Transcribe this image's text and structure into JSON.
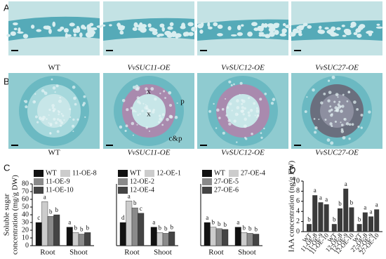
{
  "panel_labels": [
    "A",
    "B",
    "C",
    "D"
  ],
  "micrographs_a": {
    "captions": [
      "WT",
      "VvSUC11-OE",
      "VvSUC12-OE",
      "VvSUC27-OE"
    ]
  },
  "micrographs_b": {
    "captions": [
      "WT",
      "VvSUC11-OE",
      "VvSUC12-OE",
      "VvSUC27-OE"
    ],
    "annotations": [
      "x",
      "x",
      "p",
      "c&p"
    ]
  },
  "chart_data": [
    {
      "type": "bar",
      "y_label": [
        "Soluble sugar",
        "concentration (mg/g DW)"
      ],
      "categories": [
        "Root",
        "Shoot"
      ],
      "series": [
        {
          "name": "WT",
          "color": "#111111",
          "values": [
            30,
            24
          ],
          "letters": [
            "c",
            "a"
          ]
        },
        {
          "name": "11-OE-8",
          "color": "#cccccc",
          "values": [
            57,
            17
          ],
          "letters": [
            "a",
            "b"
          ]
        },
        {
          "name": "11-OE-9",
          "color": "#8a8a8a",
          "values": [
            38,
            15
          ],
          "letters": [
            "b",
            "b"
          ]
        },
        {
          "name": "11-OE-10",
          "color": "#444444",
          "values": [
            40,
            17
          ],
          "letters": [
            "b",
            "b"
          ]
        }
      ],
      "ylim": [
        0,
        80
      ],
      "yticks": [
        0,
        10,
        20,
        30,
        40,
        50,
        60,
        70,
        80
      ]
    },
    {
      "type": "bar",
      "categories": [
        "Root",
        "Shoot"
      ],
      "series": [
        {
          "name": "WT",
          "color": "#111111",
          "values": [
            30,
            24
          ],
          "letters": [
            "d",
            "a"
          ]
        },
        {
          "name": "12-OE-1",
          "color": "#cccccc",
          "values": [
            58,
            17
          ],
          "letters": [
            "a",
            "b"
          ]
        },
        {
          "name": "12-OE-2",
          "color": "#8a8a8a",
          "values": [
            49,
            16
          ],
          "letters": [
            "b",
            "b"
          ]
        },
        {
          "name": "12-OE-4",
          "color": "#444444",
          "values": [
            42,
            18
          ],
          "letters": [
            "c",
            "b"
          ]
        }
      ],
      "ylim": [
        0,
        80
      ]
    },
    {
      "type": "bar",
      "categories": [
        "Root",
        "Shoot"
      ],
      "series": [
        {
          "name": "WT",
          "color": "#111111",
          "values": [
            30,
            24
          ],
          "letters": [
            "a",
            "a"
          ]
        },
        {
          "name": "27-OE-4",
          "color": "#cccccc",
          "values": [
            24,
            17
          ],
          "letters": [
            "b",
            "b"
          ]
        },
        {
          "name": "27-OE-5",
          "color": "#8a8a8a",
          "values": [
            22,
            16
          ],
          "letters": [
            "b",
            "b"
          ]
        },
        {
          "name": "27-OE-6",
          "color": "#444444",
          "values": [
            21,
            15
          ],
          "letters": [
            "b",
            "b"
          ]
        }
      ],
      "ylim": [
        0,
        80
      ]
    },
    {
      "type": "column",
      "y_label": "IAA concentration (ng/g FW)",
      "categories": [
        "WT",
        "11-OE-8",
        "11-OE-9",
        "11-OE-10",
        "WT",
        "12-OE-8",
        "12-OE-9",
        "12-OE-10",
        "WT",
        "27-OE-8",
        "27-OE-9",
        "27-OE-10"
      ],
      "values": [
        1.5,
        7.2,
        5.8,
        5.4,
        1.5,
        4.6,
        8.5,
        4.8,
        1.5,
        3.8,
        3.0,
        4.4
      ],
      "letters": [
        "b",
        "a",
        "a",
        "a",
        "b",
        "b",
        "a",
        "b",
        "b",
        "a",
        "a",
        "a"
      ],
      "color": "#3a3a3a",
      "ylim": [
        0,
        10
      ],
      "yticks": [
        0,
        2,
        4,
        6,
        8,
        10
      ]
    }
  ]
}
